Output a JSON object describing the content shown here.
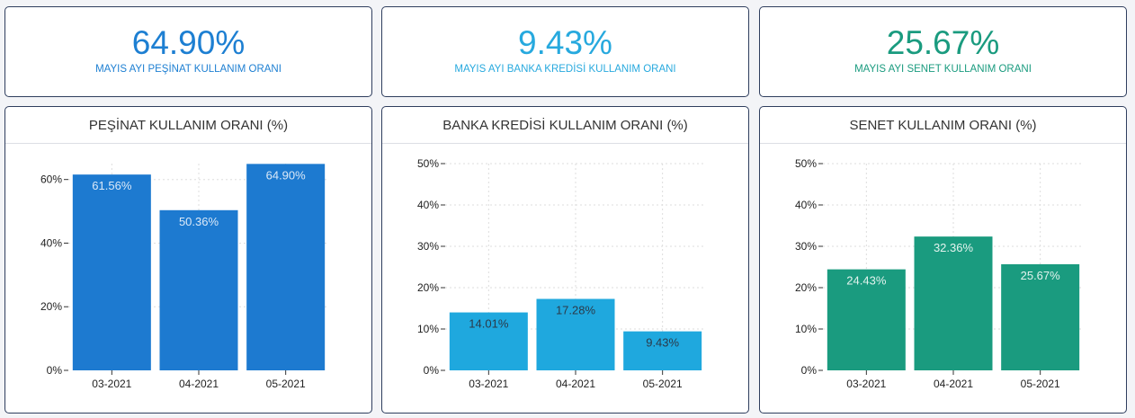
{
  "kpis": [
    {
      "value": "64.90%",
      "label": "MAYIS AYI PEŞİNAT KULLANIM ORANI",
      "color": "#1d7fd2"
    },
    {
      "value": "9.43%",
      "label": "MAYIS AYI BANKA KREDİSİ KULLANIM ORANI",
      "color": "#27a9de"
    },
    {
      "value": "25.67%",
      "label": "MAYIS AYI SENET KULLANIM ORANI",
      "color": "#1a9b7f"
    }
  ],
  "chart_data": [
    {
      "type": "bar",
      "title": "PEŞİNAT KULLANIM ORANI (%)",
      "categories": [
        "03-2021",
        "04-2021",
        "05-2021"
      ],
      "values": [
        61.56,
        50.36,
        64.9
      ],
      "value_labels": [
        "61.56%",
        "50.36%",
        "64.90%"
      ],
      "ylim": [
        0,
        65
      ],
      "yticks": [
        0,
        20,
        40,
        60
      ],
      "ytick_labels": [
        "0%",
        "20%",
        "40%",
        "60%"
      ],
      "bar_color": "#1d7ad0",
      "label_color": "#dbe9f8",
      "grid": true
    },
    {
      "type": "bar",
      "title": "BANKA KREDİSİ KULLANIM ORANI (%)",
      "categories": [
        "03-2021",
        "04-2021",
        "05-2021"
      ],
      "values": [
        14.01,
        17.28,
        9.43
      ],
      "value_labels": [
        "14.01%",
        "17.28%",
        "9.43%"
      ],
      "ylim": [
        0,
        50
      ],
      "yticks": [
        0,
        10,
        20,
        30,
        40,
        50
      ],
      "ytick_labels": [
        "0%",
        "10%",
        "20%",
        "30%",
        "40%",
        "50%"
      ],
      "bar_color": "#1fa8de",
      "label_color": "#2b3a4a",
      "grid": true
    },
    {
      "type": "bar",
      "title": "SENET KULLANIM ORANI (%)",
      "categories": [
        "03-2021",
        "04-2021",
        "05-2021"
      ],
      "values": [
        24.43,
        32.36,
        25.67
      ],
      "value_labels": [
        "24.43%",
        "32.36%",
        "25.67%"
      ],
      "ylim": [
        0,
        50
      ],
      "yticks": [
        0,
        10,
        20,
        30,
        40,
        50
      ],
      "ytick_labels": [
        "0%",
        "10%",
        "20%",
        "30%",
        "40%",
        "50%"
      ],
      "bar_color": "#1a9b7f",
      "label_color": "#e3f3ee",
      "grid": true
    }
  ]
}
